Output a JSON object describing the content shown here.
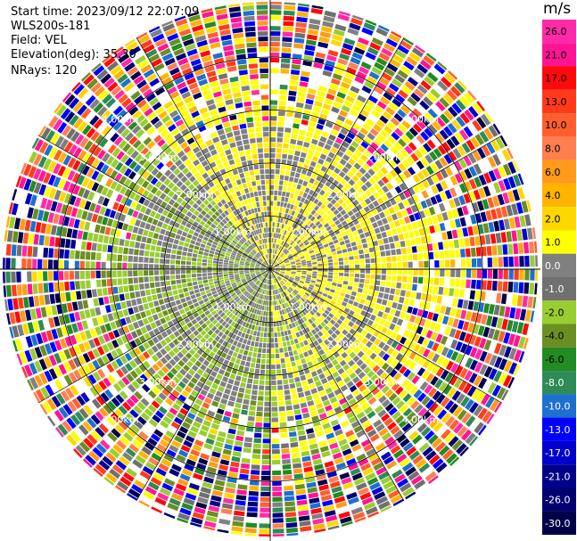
{
  "header": {
    "start_time": "Start time: 2023/09/12 22:07:09",
    "instrument": "WLS200s-181",
    "field": "Field: VEL",
    "elevation": "Elevation(deg): 35.30",
    "nrays": "NRays: 120"
  },
  "colorbar": {
    "unit": "m/s",
    "ticks": [
      "26.0",
      "21.0",
      "17.0",
      "13.0",
      "10.0",
      "8.0",
      "6.0",
      "4.0",
      "2.0",
      "1.0",
      "0.0",
      "-1.0",
      "-2.0",
      "-4.0",
      "-6.0",
      "-8.0",
      "-10.0",
      "-13.0",
      "-17.0",
      "-21.0",
      "-26.0",
      "-30.0"
    ],
    "colors": [
      "#ff2aa8",
      "#ff1493",
      "#ff0a0a",
      "#ff3b1a",
      "#ff5f2e",
      "#ff7f50",
      "#ff9a1a",
      "#ffb400",
      "#ffd700",
      "#ffff00",
      "#808080",
      "#707070",
      "#9acd32",
      "#6b8e23",
      "#228b22",
      "#2e8b57",
      "#1e6fd0",
      "#0000ff",
      "#0000cd",
      "#00008b",
      "#000070",
      "#000048"
    ]
  },
  "chart_data": {
    "type": "ppi",
    "field": "VEL",
    "nrays": 120,
    "range_ring_labels": [
      "1.00km",
      "2.00km",
      "3.00km",
      "4.00km"
    ],
    "range_rings_km": [
      1,
      2,
      3,
      4
    ],
    "grid": true
  }
}
